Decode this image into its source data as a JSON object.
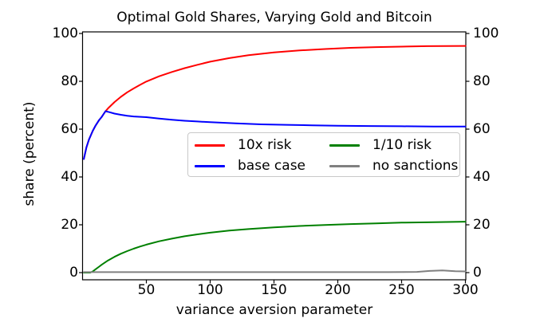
{
  "chart_data": {
    "type": "line",
    "title": "Optimal Gold Shares, Varying Gold and Bitcoin",
    "xlabel": "variance aversion parameter",
    "ylabel": "share (percent)",
    "xlim": [
      0,
      300
    ],
    "ylim": [
      -3,
      100.7
    ],
    "x_ticks": [
      50,
      100,
      150,
      200,
      250,
      300
    ],
    "y_ticks": [
      0,
      20,
      40,
      60,
      80,
      100
    ],
    "y_ticks_mirrored_right": true,
    "grid": false,
    "legend": {
      "position": "center",
      "columns": 2,
      "fill_order": "column"
    },
    "series": [
      {
        "name": "10x risk",
        "color": "#ff0000",
        "points": [
          [
            1,
            47.5
          ],
          [
            3,
            52.3
          ],
          [
            5,
            55.6
          ],
          [
            8,
            59.3
          ],
          [
            10,
            61.3
          ],
          [
            13,
            63.8
          ],
          [
            15,
            65.1
          ],
          [
            18,
            67.5
          ],
          [
            20,
            68.7
          ],
          [
            25,
            71.3
          ],
          [
            30,
            73.5
          ],
          [
            35,
            75.4
          ],
          [
            40,
            77.0
          ],
          [
            45,
            78.5
          ],
          [
            50,
            79.9
          ],
          [
            60,
            82.1
          ],
          [
            70,
            83.9
          ],
          [
            80,
            85.5
          ],
          [
            90,
            86.9
          ],
          [
            100,
            88.2
          ],
          [
            115,
            89.7
          ],
          [
            130,
            90.9
          ],
          [
            150,
            92.1
          ],
          [
            170,
            92.9
          ],
          [
            190,
            93.5
          ],
          [
            210,
            94.0
          ],
          [
            230,
            94.3
          ],
          [
            250,
            94.5
          ],
          [
            270,
            94.7
          ],
          [
            300,
            94.8
          ]
        ]
      },
      {
        "name": "base case",
        "color": "#0000ff",
        "points": [
          [
            1,
            47.5
          ],
          [
            3,
            52.3
          ],
          [
            5,
            55.6
          ],
          [
            8,
            59.3
          ],
          [
            10,
            61.3
          ],
          [
            13,
            63.8
          ],
          [
            15,
            65.1
          ],
          [
            18,
            67.5
          ],
          [
            21,
            67.1
          ],
          [
            25,
            66.5
          ],
          [
            30,
            66.0
          ],
          [
            35,
            65.6
          ],
          [
            40,
            65.3
          ],
          [
            50,
            65.0
          ],
          [
            60,
            64.4
          ],
          [
            70,
            63.9
          ],
          [
            80,
            63.5
          ],
          [
            90,
            63.2
          ],
          [
            100,
            62.9
          ],
          [
            120,
            62.4
          ],
          [
            140,
            62.0
          ],
          [
            160,
            61.8
          ],
          [
            180,
            61.6
          ],
          [
            200,
            61.4
          ],
          [
            225,
            61.3
          ],
          [
            250,
            61.2
          ],
          [
            275,
            61.1
          ],
          [
            300,
            61.1
          ]
        ]
      },
      {
        "name": "1/10 risk",
        "color": "#008000",
        "points": [
          [
            1,
            0
          ],
          [
            6,
            0
          ],
          [
            8,
            0.5
          ],
          [
            10,
            1.3
          ],
          [
            13,
            2.5
          ],
          [
            15,
            3.3
          ],
          [
            18,
            4.4
          ],
          [
            20,
            5.1
          ],
          [
            25,
            6.6
          ],
          [
            30,
            7.9
          ],
          [
            35,
            9.0
          ],
          [
            40,
            10.0
          ],
          [
            45,
            10.9
          ],
          [
            50,
            11.7
          ],
          [
            60,
            13.1
          ],
          [
            70,
            14.2
          ],
          [
            80,
            15.2
          ],
          [
            90,
            16.0
          ],
          [
            100,
            16.7
          ],
          [
            115,
            17.6
          ],
          [
            130,
            18.2
          ],
          [
            150,
            18.9
          ],
          [
            170,
            19.5
          ],
          [
            190,
            19.9
          ],
          [
            210,
            20.3
          ],
          [
            230,
            20.6
          ],
          [
            250,
            20.9
          ],
          [
            275,
            21.1
          ],
          [
            300,
            21.3
          ]
        ]
      },
      {
        "name": "no sanctions",
        "color": "#808080",
        "points": [
          [
            1,
            0.2
          ],
          [
            60,
            0.2
          ],
          [
            120,
            0.2
          ],
          [
            180,
            0.2
          ],
          [
            240,
            0.2
          ],
          [
            262,
            0.3
          ],
          [
            272,
            0.7
          ],
          [
            282,
            0.9
          ],
          [
            292,
            0.6
          ],
          [
            300,
            0.5
          ]
        ]
      }
    ]
  }
}
